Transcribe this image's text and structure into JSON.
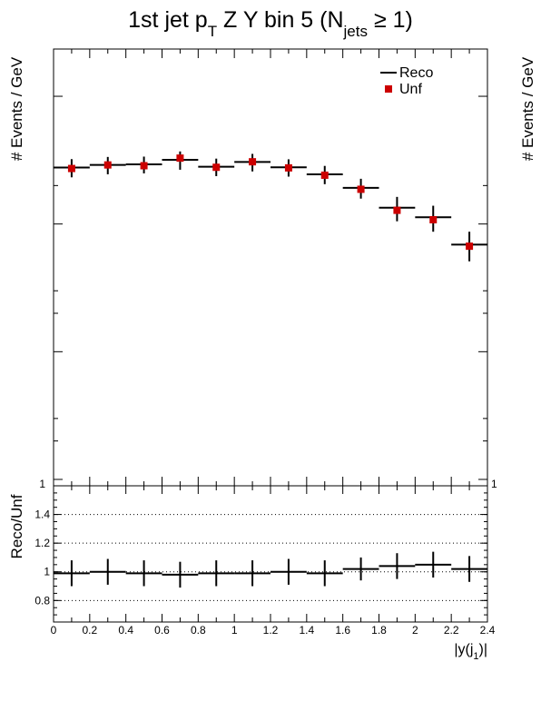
{
  "chart_data": [
    {
      "type": "scatter",
      "title": {
        "part1": "1st jet p",
        "sub1": "T",
        "part2": " Z Y bin 5 (N",
        "sub2": "jets",
        "part3": " ≥ 1)"
      },
      "ylabel": "# Events / GeV",
      "ylabel_right": "# Events / GeV",
      "yscale": "log",
      "ytick_label": "1",
      "ytick_label_right": "1",
      "xlim": [
        0,
        2.4
      ],
      "bin_edges": [
        0,
        0.2,
        0.4,
        0.6,
        0.8,
        1.0,
        1.2,
        1.4,
        1.6,
        1.8,
        2.0,
        2.2,
        2.4
      ],
      "legend": {
        "position": "top-right",
        "reco_label": "Reco",
        "unf_label": "Unf"
      },
      "series": [
        {
          "name": "Reco",
          "style": "hist-errorbar",
          "color": "#000000",
          "x": [
            0.1,
            0.3,
            0.5,
            0.7,
            0.9,
            1.1,
            1.3,
            1.5,
            1.7,
            1.9,
            2.1,
            2.3
          ],
          "values": [
            277,
            290,
            293,
            318,
            281,
            306,
            278,
            245,
            192,
            134,
            113,
            69
          ],
          "errors": [
            45,
            45,
            44,
            52,
            44,
            48,
            43,
            40,
            34,
            29,
            26,
            18
          ]
        },
        {
          "name": "Unf",
          "style": "marker",
          "color": "#cc0000",
          "x": [
            0.1,
            0.3,
            0.5,
            0.7,
            0.9,
            1.1,
            1.3,
            1.5,
            1.7,
            1.9,
            2.1,
            2.3
          ],
          "values": [
            272,
            290,
            286,
            328,
            278,
            307,
            275,
            241,
            187,
            128,
            108,
            67
          ]
        }
      ]
    },
    {
      "type": "scatter",
      "ylabel": "Reco/Unf",
      "xlabel": "|y(j_1)|",
      "xlabel_parts": {
        "main": "|y(j",
        "sub": "1",
        "tail": ")|"
      },
      "xlim": [
        0,
        2.4
      ],
      "ylim": [
        0.65,
        1.6
      ],
      "yticks": [
        0.8,
        1,
        1.2,
        1.4
      ],
      "ytick_labels": [
        "0.8",
        "1",
        "1.2",
        "1.4"
      ],
      "xticks": [
        0,
        0.2,
        0.4,
        0.6,
        0.8,
        1,
        1.2,
        1.4,
        1.6,
        1.8,
        2,
        2.2,
        2.4
      ],
      "xtick_labels": [
        "0",
        "0.2",
        "0.4",
        "0.6",
        "0.8",
        "1",
        "1.2",
        "1.4",
        "1.6",
        "1.8",
        "2",
        "2.2",
        "2.4"
      ],
      "grid": "horizontal-dotted",
      "series": [
        {
          "name": "Reco/Unf",
          "color": "#000000",
          "x": [
            0.1,
            0.3,
            0.5,
            0.7,
            0.9,
            1.1,
            1.3,
            1.5,
            1.7,
            1.9,
            2.1,
            2.3
          ],
          "values": [
            0.99,
            1.0,
            0.99,
            0.98,
            0.99,
            0.99,
            1.0,
            0.99,
            1.02,
            1.04,
            1.05,
            1.02
          ],
          "errors": [
            0.09,
            0.09,
            0.09,
            0.09,
            0.09,
            0.09,
            0.09,
            0.09,
            0.08,
            0.09,
            0.09,
            0.09
          ]
        }
      ]
    }
  ]
}
